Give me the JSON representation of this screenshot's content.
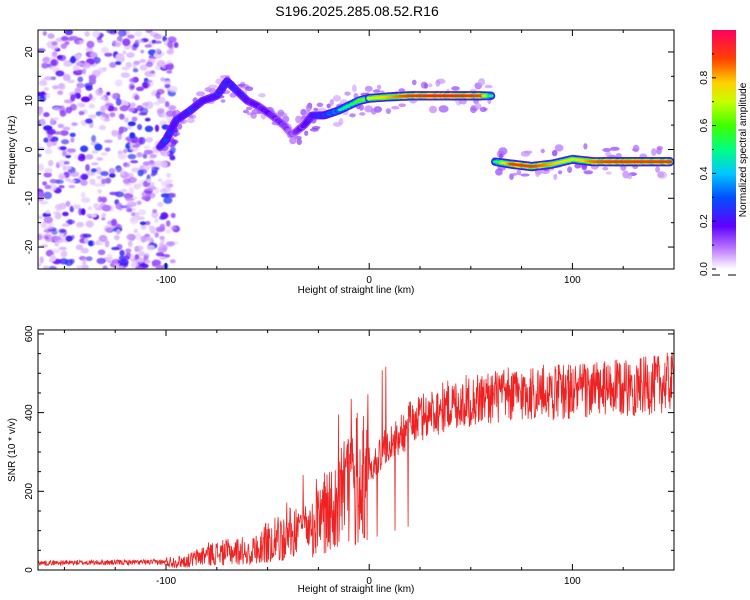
{
  "title": "S196.2025.285.08.52.R16",
  "chart_data": [
    {
      "type": "heatmap",
      "name": "spectrogram",
      "xlabel": "Height of straight line (km)",
      "ylabel": "Frequency (Hz)",
      "xlim": [
        -163,
        150
      ],
      "ylim": [
        -24.5,
        24.5
      ],
      "xticks": [
        -100,
        0,
        100
      ],
      "yticks": [
        -20,
        -10,
        0,
        10,
        20
      ],
      "colorbar": {
        "label": "Normalized spectral amplitude",
        "ticks": [
          0.0,
          0.2,
          0.4,
          0.6,
          0.8
        ],
        "range": [
          0,
          1
        ]
      },
      "segments": [
        {
          "name": "noise-region",
          "x_range": [
            -163,
            -95
          ],
          "y_range": [
            -24.5,
            24.5
          ],
          "amplitude": 0.08
        },
        {
          "name": "rising-track",
          "x": [
            -103,
            -100,
            -95,
            -88,
            -82,
            -75,
            -70,
            -65,
            -60,
            -55,
            -48,
            -42,
            -38,
            -32,
            -28,
            -22,
            -15,
            -10,
            -5,
            0
          ],
          "y": [
            0.5,
            2,
            6,
            8,
            10,
            11,
            14,
            12,
            10,
            9,
            7,
            5,
            3,
            5,
            7,
            7,
            8,
            9,
            10,
            10.5
          ],
          "amplitude": [
            0.25,
            0.35,
            0.3,
            0.32,
            0.3,
            0.3,
            0.35,
            0.3,
            0.28,
            0.25,
            0.22,
            0.2,
            0.15,
            0.25,
            0.3,
            0.35,
            0.45,
            0.5,
            0.6,
            0.65
          ]
        },
        {
          "name": "upper-track",
          "x": [
            0,
            10,
            20,
            30,
            40,
            50,
            55,
            60
          ],
          "y": [
            10.5,
            10.8,
            11,
            11,
            11,
            11,
            11,
            11
          ],
          "amplitude": [
            0.7,
            0.8,
            0.9,
            0.95,
            0.95,
            0.92,
            0.88,
            0.5
          ]
        },
        {
          "name": "lower-track",
          "x": [
            62,
            70,
            80,
            90,
            100,
            110,
            120,
            130,
            140,
            148
          ],
          "y": [
            -2.5,
            -3,
            -3.5,
            -3,
            -2,
            -2.5,
            -2.5,
            -2.5,
            -2.5,
            -2.5
          ],
          "amplitude": [
            0.5,
            0.9,
            0.9,
            0.8,
            0.7,
            0.85,
            0.9,
            0.9,
            0.9,
            0.9
          ]
        }
      ]
    },
    {
      "type": "line",
      "name": "snr",
      "xlabel": "Height of straight line (km)",
      "ylabel": "SNR (10 * v/v)",
      "xlim": [
        -163,
        150
      ],
      "ylim": [
        0,
        610
      ],
      "xticks": [
        -100,
        0,
        100
      ],
      "yticks": [
        0,
        200,
        400,
        600
      ],
      "color": "#ee2222",
      "trend": {
        "x": [
          -163,
          -100,
          -90,
          -80,
          -70,
          -60,
          -50,
          -40,
          -30,
          -20,
          -10,
          0,
          10,
          20,
          30,
          40,
          60,
          80,
          100,
          120,
          140,
          150
        ],
        "y": [
          18,
          20,
          22,
          40,
          45,
          50,
          70,
          90,
          110,
          150,
          200,
          260,
          320,
          370,
          400,
          420,
          440,
          450,
          455,
          460,
          470,
          480
        ]
      }
    }
  ]
}
